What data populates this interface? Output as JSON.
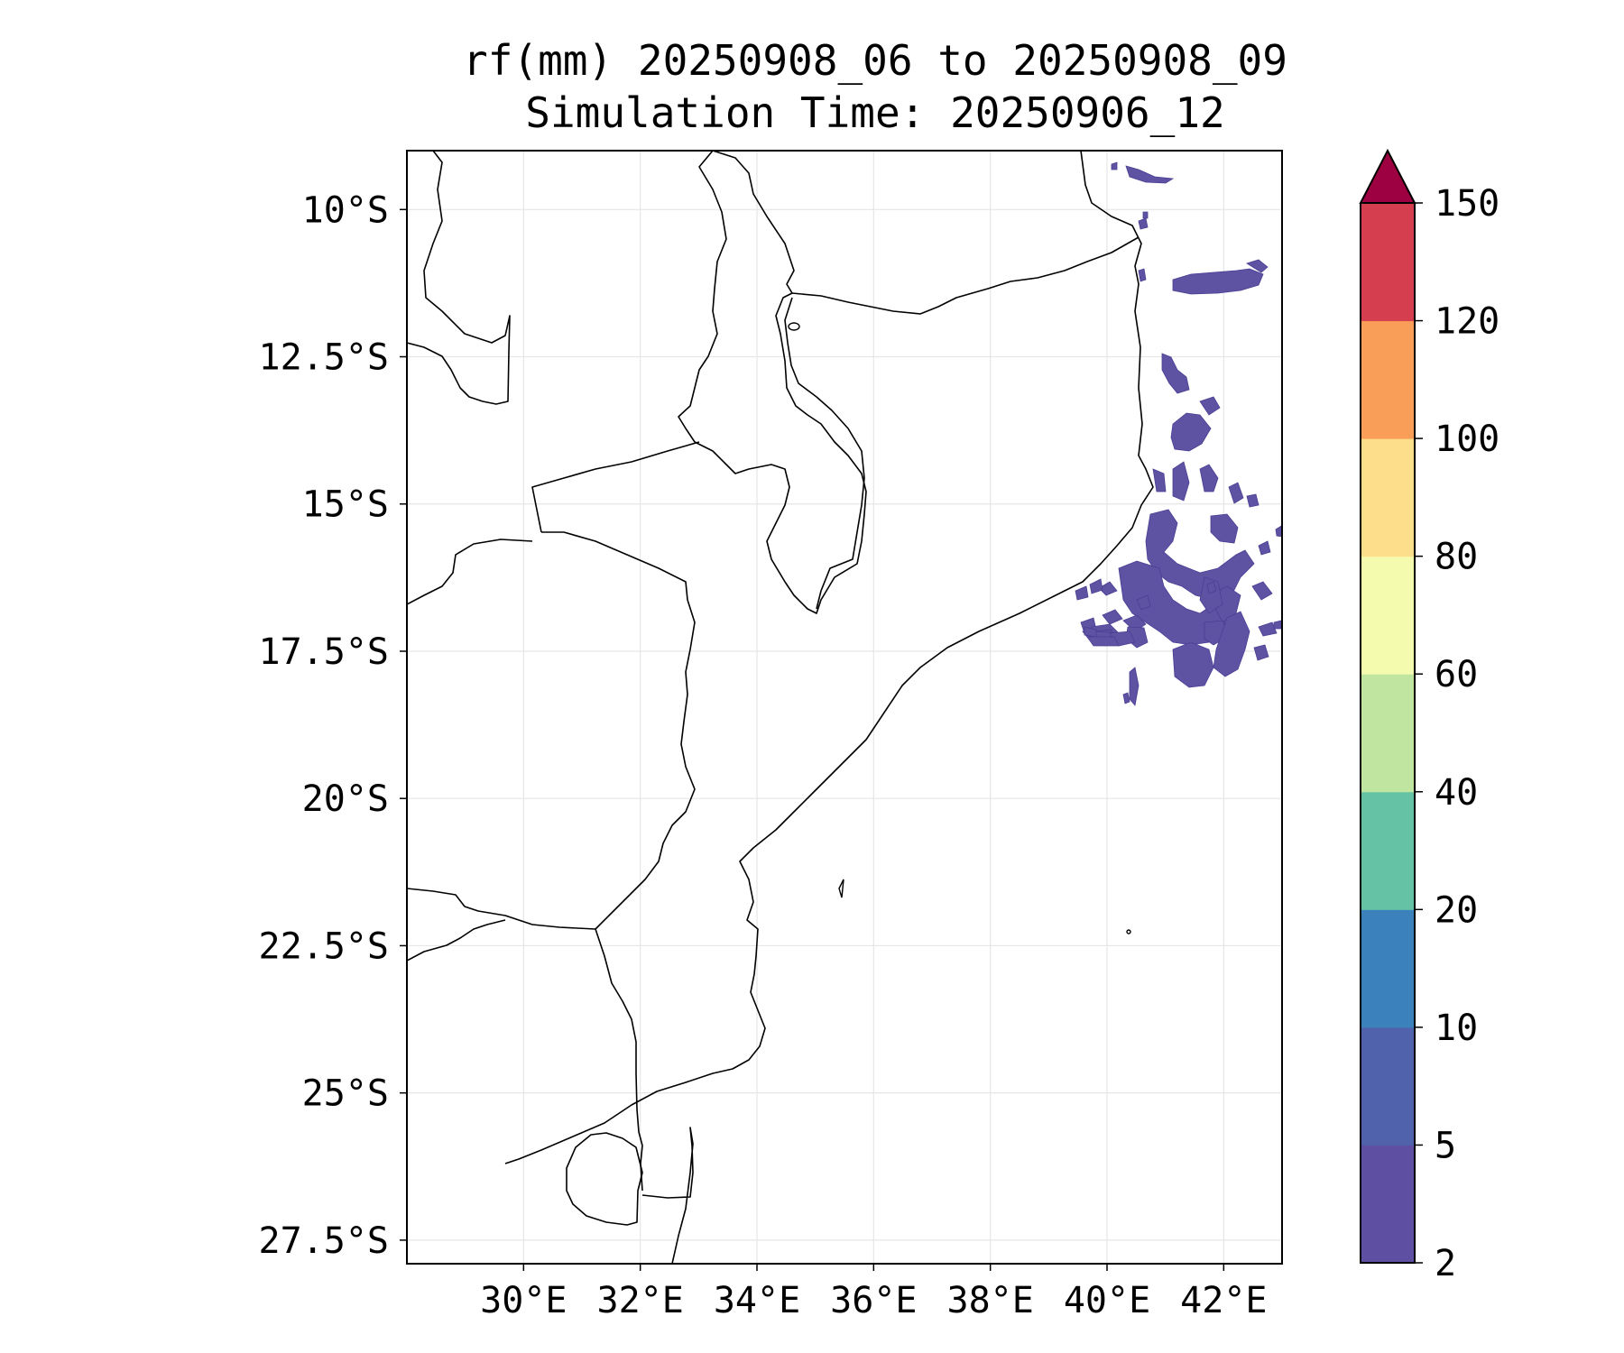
{
  "title": {
    "line1": "rf(mm) 20250908_06 to 20250908_09",
    "line2": "Simulation Time: 20250906_12"
  },
  "map": {
    "lon_range": [
      28.0,
      43.0
    ],
    "lat_range": [
      -9.0,
      -27.9
    ],
    "lon_ticks": [
      {
        "value": 30,
        "label": "30°E"
      },
      {
        "value": 32,
        "label": "32°E"
      },
      {
        "value": 34,
        "label": "34°E"
      },
      {
        "value": 36,
        "label": "36°E"
      },
      {
        "value": 38,
        "label": "38°E"
      },
      {
        "value": 40,
        "label": "40°E"
      },
      {
        "value": 42,
        "label": "42°E"
      }
    ],
    "lat_ticks": [
      {
        "value": -10,
        "label": "10°S"
      },
      {
        "value": -12.5,
        "label": "12.5°S"
      },
      {
        "value": -15,
        "label": "15°S"
      },
      {
        "value": -17.5,
        "label": "17.5°S"
      },
      {
        "value": -20,
        "label": "20°S"
      },
      {
        "value": -22.5,
        "label": "22.5°S"
      },
      {
        "value": -25,
        "label": "25°S"
      },
      {
        "value": -27.5,
        "label": "27.5°S"
      }
    ],
    "gridlines": true,
    "border_color": "#000000",
    "grid_color": "#e6e6e6"
  },
  "colorbar": {
    "levels": [
      "2",
      "5",
      "10",
      "20",
      "40",
      "60",
      "80",
      "100",
      "120",
      "150"
    ],
    "colors": [
      "#5e4fa2",
      "#4f62ab",
      "#3b82bc",
      "#66c2a5",
      "#bfe5a0",
      "#f4faae",
      "#fddf8b",
      "#f99e59",
      "#d53e4f"
    ],
    "extend_color": "#9e0142",
    "extend": "max"
  },
  "rain_color": "#5e52a3"
}
